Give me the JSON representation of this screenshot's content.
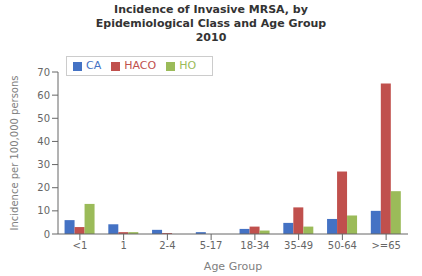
{
  "chart_data": {
    "type": "bar",
    "title": "Incidence of Invasive MRSA, by\nEpidemiological Class and Age Group\n2010",
    "xlabel": "Age Group",
    "ylabel": "Incidence per 100,000 persons",
    "categories": [
      "<1",
      "1",
      "2-4",
      "5-17",
      "18-34",
      "35-49",
      "50-64",
      ">=65"
    ],
    "series": [
      {
        "name": "CA",
        "color": "#4472C4",
        "values": [
          6.0,
          4.2,
          1.8,
          0.8,
          2.2,
          4.8,
          6.5,
          10.0
        ]
      },
      {
        "name": "HACO",
        "color": "#C0504D",
        "values": [
          3.0,
          0.8,
          0.4,
          0.0,
          3.2,
          11.5,
          27.0,
          65.0
        ]
      },
      {
        "name": "HO",
        "color": "#9BBB59",
        "values": [
          13.0,
          0.8,
          0.0,
          0.0,
          1.5,
          3.2,
          8.0,
          18.5
        ]
      }
    ],
    "ylim": [
      0,
      70
    ],
    "yticks": [
      0,
      10,
      20,
      30,
      40,
      50,
      60,
      70
    ],
    "grid": false,
    "legend": "upper left"
  }
}
